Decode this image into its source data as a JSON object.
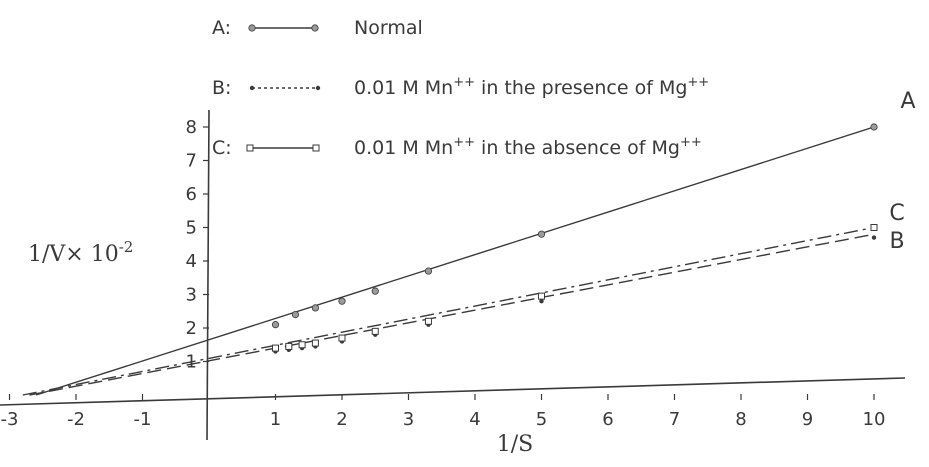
{
  "chart_data": {
    "type": "line",
    "title": "",
    "xlabel": "1/S",
    "ylabel": "1/V× 10-2",
    "ylabel_main": "1/V× 10",
    "ylabel_exp": "-2",
    "xlim": [
      -3,
      10.1
    ],
    "ylim": [
      0,
      8.3
    ],
    "x_ticks": [
      -3,
      -2,
      -1,
      1,
      2,
      3,
      4,
      5,
      6,
      7,
      8,
      9,
      10
    ],
    "x_tick_labels": [
      "-3",
      "-2",
      "-1",
      "1",
      "2",
      "3",
      "4",
      "5",
      "6",
      "7",
      "8",
      "9",
      "10"
    ],
    "y_ticks": [
      1,
      2,
      3,
      4,
      5,
      6,
      7,
      8
    ],
    "y_tick_labels": [
      "1",
      "2",
      "3",
      "4",
      "5",
      "6",
      "7",
      "8"
    ],
    "grid": false,
    "legend_position": "top-left",
    "series": [
      {
        "id": "A",
        "label": "A",
        "legend_prefix": "A:",
        "legend_text": "Normal",
        "legend_sup": "",
        "legend_suffix": "",
        "line_style": "solid",
        "marker": "circle",
        "x": [
          1,
          1.3,
          1.6,
          2,
          2.5,
          3.3,
          5,
          10
        ],
        "y": [
          2.1,
          2.4,
          2.6,
          2.8,
          3.1,
          3.7,
          4.8,
          8.0
        ],
        "fit": {
          "x": [
            -2.6,
            10
          ],
          "y": [
            0,
            8.0
          ]
        }
      },
      {
        "id": "B",
        "label": "B",
        "legend_prefix": "B:",
        "legend_text": "0.01 M Mn",
        "legend_sup": "++",
        "legend_suffix": " in the presence of Mg",
        "legend_sup2": "++",
        "line_style": "dashed",
        "marker": "dot",
        "x": [
          1,
          1.2,
          1.4,
          1.6,
          2,
          2.5,
          3.3,
          5,
          10
        ],
        "y": [
          1.3,
          1.35,
          1.4,
          1.45,
          1.6,
          1.8,
          2.1,
          2.8,
          4.7
        ],
        "fit": {
          "x": [
            -2.7,
            10
          ],
          "y": [
            0,
            4.8
          ]
        }
      },
      {
        "id": "C",
        "label": "C",
        "legend_prefix": "C:",
        "legend_text": "0.01 M Mn",
        "legend_sup": "++",
        "legend_suffix": " in the absence of Mg",
        "legend_sup2": "++",
        "line_style": "dash-dot",
        "marker": "square",
        "x": [
          1,
          1.2,
          1.4,
          1.6,
          2,
          2.5,
          3.3,
          5,
          10
        ],
        "y": [
          1.4,
          1.45,
          1.5,
          1.55,
          1.7,
          1.9,
          2.2,
          2.95,
          5.0
        ],
        "fit": {
          "x": [
            -2.8,
            10
          ],
          "y": [
            0,
            5.0
          ]
        }
      }
    ],
    "colors": {
      "ink": "#3a3a3a",
      "background": "#ffffff"
    }
  }
}
